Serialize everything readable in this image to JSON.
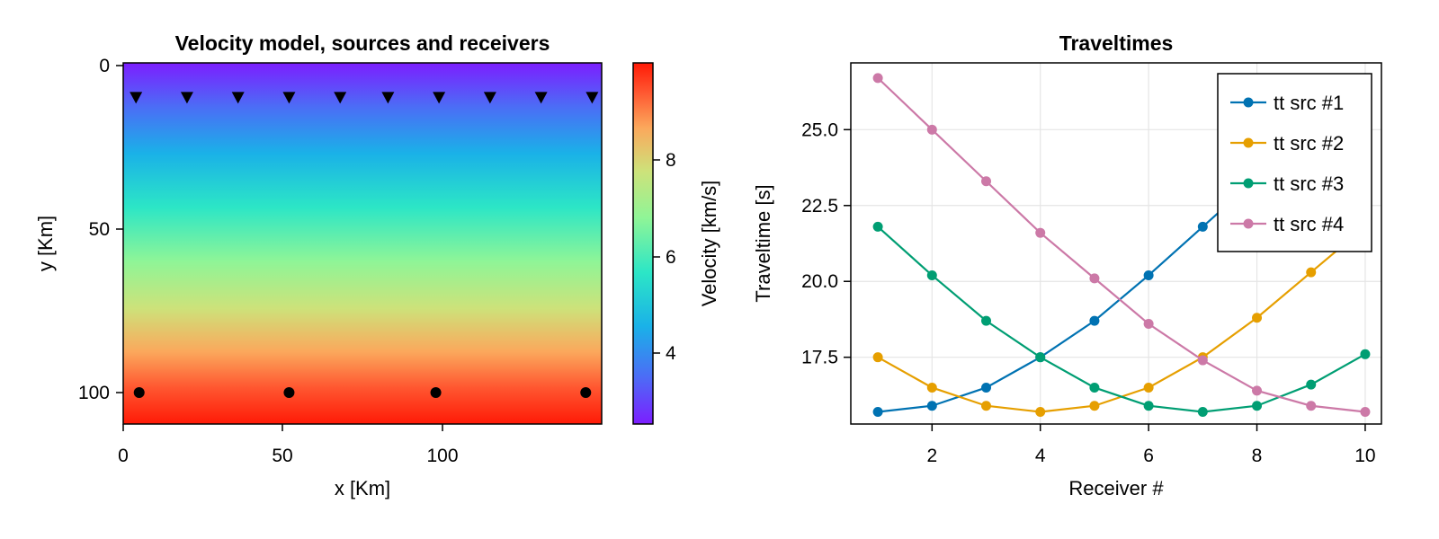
{
  "chart_data": [
    {
      "type": "heatmap",
      "title": "Velocity model, sources and receivers",
      "xlabel": "x [Km]",
      "ylabel": "y [Km]",
      "xlim": [
        0,
        150
      ],
      "ylim": [
        110,
        0
      ],
      "xticks": [
        "0",
        "50",
        "100"
      ],
      "yticks": [
        "0",
        "50",
        "100"
      ],
      "velocity_gradient": {
        "top_value": 2.5,
        "bottom_value": 9.9,
        "direction": "vertical"
      },
      "receivers": {
        "marker": "triangle-down",
        "x": [
          4,
          20,
          36,
          52,
          68,
          83,
          99,
          115,
          131,
          147
        ],
        "y": [
          10,
          10,
          10,
          10,
          10,
          10,
          10,
          10,
          10,
          10
        ]
      },
      "sources": {
        "marker": "circle",
        "x": [
          5,
          52,
          98,
          145
        ],
        "y": [
          100,
          100,
          100,
          100
        ]
      },
      "colorbar": {
        "label": "Velocity [km/s]",
        "colormap": "rainbow",
        "range": [
          2.5,
          9.9
        ],
        "ticks": [
          "4",
          "6",
          "8"
        ]
      }
    },
    {
      "type": "line",
      "title": "Traveltimes",
      "xlabel": "Receiver #",
      "ylabel": "Traveltime [s]",
      "xlim": [
        0.5,
        10.3
      ],
      "ylim": [
        15.3,
        27.2
      ],
      "grid": true,
      "legend_position": "top-right",
      "xticks": [
        "2",
        "4",
        "6",
        "8",
        "10"
      ],
      "yticks": [
        "17.5",
        "20.0",
        "22.5",
        "25.0"
      ],
      "x": [
        1,
        2,
        3,
        4,
        5,
        6,
        7,
        8,
        9,
        10
      ],
      "series": [
        {
          "name": "tt src #1",
          "color": "#0072b2",
          "values": [
            15.7,
            15.9,
            16.5,
            17.5,
            18.7,
            20.2,
            21.8,
            23.4,
            25.0,
            26.7
          ]
        },
        {
          "name": "tt src #2",
          "color": "#e69f00",
          "values": [
            17.5,
            16.5,
            15.9,
            15.7,
            15.9,
            16.5,
            17.5,
            18.8,
            20.3,
            21.8
          ]
        },
        {
          "name": "tt src #3",
          "color": "#009e73",
          "values": [
            21.8,
            20.2,
            18.7,
            17.5,
            16.5,
            15.9,
            15.7,
            15.9,
            16.6,
            17.6
          ]
        },
        {
          "name": "tt src #4",
          "color": "#cc79a7",
          "values": [
            26.7,
            25.0,
            23.3,
            21.6,
            20.1,
            18.6,
            17.4,
            16.4,
            15.9,
            15.7
          ]
        }
      ]
    }
  ]
}
